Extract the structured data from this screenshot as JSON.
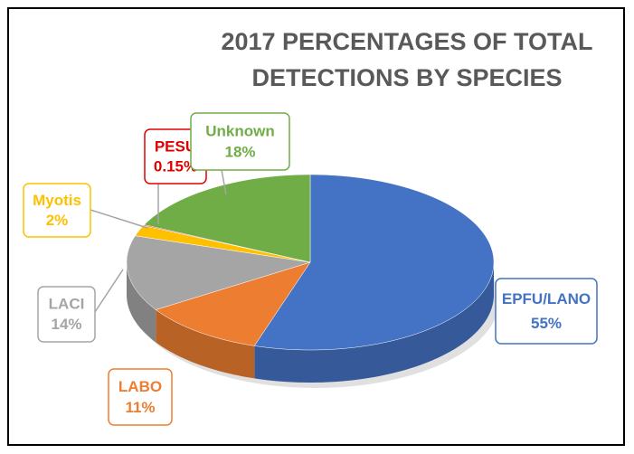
{
  "chart_data": {
    "type": "pie3d",
    "title": [
      "2017 PERCENTAGES OF TOTAL",
      "DETECTIONS BY SPECIES"
    ],
    "categories": [
      "EPFU/LANO",
      "LABO",
      "LACI",
      "Myotis",
      "PESU",
      "Unknown"
    ],
    "values": [
      55,
      11,
      14,
      2,
      0.15,
      18
    ],
    "value_labels": [
      "55%",
      "11%",
      "14%",
      "2%",
      "0.15%",
      "18%"
    ],
    "colors": [
      "#4472c4",
      "#ed7d31",
      "#a5a5a5",
      "#ffc000",
      "#e00000",
      "#70ad47"
    ]
  }
}
